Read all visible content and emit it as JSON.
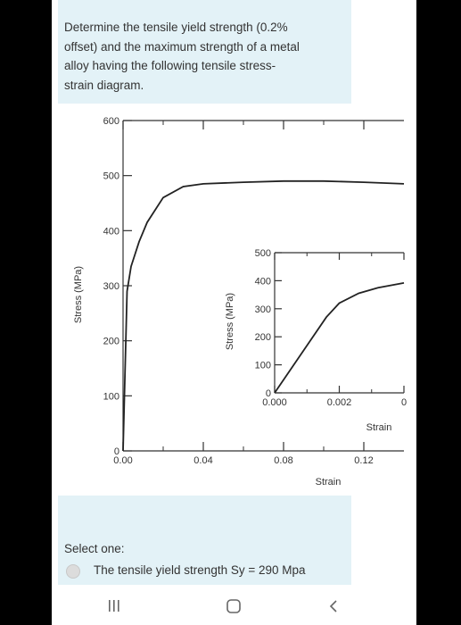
{
  "question": {
    "lines": [
      "Determine the tensile yield strength (0.2%",
      "offset) and the maximum strength of a metal",
      "alloy having the following tensile stress-",
      "strain diagram."
    ]
  },
  "chart_data": [
    {
      "type": "line",
      "ylabel": "Stress (MPa)",
      "xlabel": "Strain",
      "xlim": [
        0,
        0.14
      ],
      "ylim": [
        0,
        600
      ],
      "x_ticks": [
        "0.00",
        "0.04",
        "0.08",
        "0.12"
      ],
      "y_ticks": [
        "0",
        "100",
        "200",
        "300",
        "400",
        "500",
        "600"
      ],
      "series": [
        {
          "x": [
            0,
            0.002,
            0.004,
            0.008,
            0.012,
            0.02,
            0.03,
            0.04,
            0.06,
            0.08,
            0.1,
            0.12,
            0.14
          ],
          "y": [
            0,
            290,
            335,
            380,
            415,
            460,
            480,
            485,
            488,
            490,
            490,
            488,
            485
          ]
        }
      ]
    },
    {
      "type": "line",
      "ylabel": "Stress (MPa)",
      "xlabel": "Strain",
      "xlim": [
        0,
        0.004
      ],
      "ylim": [
        0,
        500
      ],
      "x_ticks": [
        "0.000",
        "0.002",
        "0"
      ],
      "y_ticks": [
        "0",
        "100",
        "200",
        "300",
        "400",
        "500"
      ],
      "series": [
        {
          "x": [
            0,
            0.0016,
            0.002,
            0.0026,
            0.0032,
            0.004
          ],
          "y": [
            0,
            270,
            320,
            355,
            375,
            392
          ]
        }
      ]
    }
  ],
  "answer": {
    "select_label": "Select one:",
    "option_a": "The tensile yield strength Sy = 290 Mpa"
  },
  "navbar": {
    "recents_icon": "recents-icon",
    "home_icon": "home-icon",
    "back_icon": "back-icon"
  }
}
